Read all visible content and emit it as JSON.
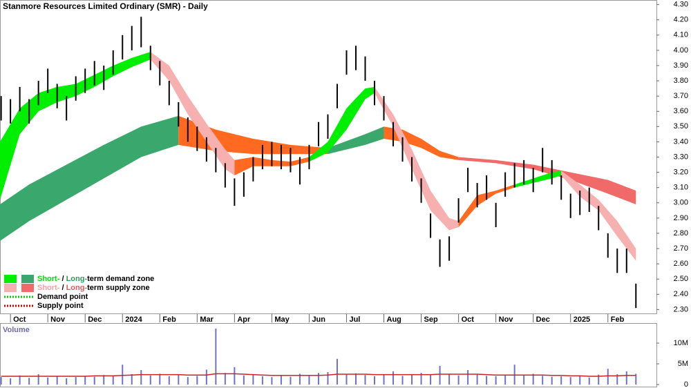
{
  "chart_data": {
    "type": "hilo",
    "title": "Stanmore Resources Limited Ordinary (SMR) - Daily",
    "price_color": "#000000",
    "x": [
      -0.25,
      0,
      0.25,
      0.5,
      0.75,
      1,
      1.25,
      1.5,
      1.75,
      2,
      2.25,
      2.5,
      2.75,
      3,
      3.25,
      3.5,
      3.75,
      4,
      4.25,
      4.5,
      4.75,
      5,
      5.25,
      5.5,
      5.75,
      6,
      6.25,
      6.5,
      6.75,
      7,
      7.25,
      7.5,
      7.75,
      8,
      8.25,
      8.5,
      8.75,
      9,
      9.25,
      9.5,
      9.75,
      10,
      10.25,
      10.5,
      10.75,
      11,
      11.25,
      11.5,
      11.75,
      12,
      12.25,
      12.5,
      12.75,
      13,
      13.25,
      13.5,
      13.75,
      14,
      14.25,
      14.5,
      14.75,
      15,
      15.25,
      15.5,
      15.75,
      16,
      16.25,
      16.5,
      16.75
    ],
    "high": [
      3.7,
      3.68,
      3.76,
      3.68,
      3.8,
      3.88,
      3.78,
      3.7,
      3.83,
      3.88,
      3.93,
      3.9,
      4.0,
      4.1,
      4.16,
      4.22,
      4.03,
      3.93,
      3.8,
      3.66,
      3.56,
      3.5,
      3.43,
      3.36,
      3.26,
      3.16,
      3.2,
      3.3,
      3.38,
      3.4,
      3.38,
      3.36,
      3.3,
      3.38,
      3.53,
      3.58,
      3.78,
      4.0,
      4.03,
      3.96,
      3.8,
      3.7,
      3.53,
      3.43,
      3.3,
      3.16,
      2.93,
      2.76,
      2.78,
      3.03,
      3.23,
      3.13,
      3.18,
      3.0,
      3.2,
      3.26,
      3.28,
      3.23,
      3.36,
      3.28,
      3.18,
      3.06,
      3.08,
      3.1,
      2.98,
      2.8,
      2.7,
      2.7,
      2.47
    ],
    "low": [
      3.54,
      3.52,
      3.6,
      3.52,
      3.64,
      3.72,
      3.62,
      3.54,
      3.67,
      3.72,
      3.77,
      3.74,
      3.84,
      3.94,
      4.0,
      4.02,
      3.87,
      3.77,
      3.64,
      3.5,
      3.4,
      3.34,
      3.27,
      3.2,
      3.1,
      2.98,
      3.04,
      3.14,
      3.22,
      3.24,
      3.22,
      3.2,
      3.12,
      3.22,
      3.37,
      3.42,
      3.62,
      3.84,
      3.87,
      3.8,
      3.64,
      3.54,
      3.37,
      3.27,
      3.14,
      3.0,
      2.77,
      2.58,
      2.62,
      2.87,
      3.07,
      2.97,
      3.02,
      2.84,
      3.04,
      3.1,
      3.12,
      3.07,
      3.2,
      3.12,
      3.02,
      2.9,
      2.92,
      2.94,
      2.82,
      2.64,
      2.54,
      2.54,
      2.31
    ],
    "xlim": [
      -0.28,
      17.3
    ],
    "xticks": [
      {
        "value": 0,
        "label": "Oct"
      },
      {
        "value": 1,
        "label": "Nov"
      },
      {
        "value": 2,
        "label": "Dec"
      },
      {
        "value": 3,
        "label": "2024"
      },
      {
        "value": 4,
        "label": "Feb"
      },
      {
        "value": 5,
        "label": "Mar"
      },
      {
        "value": 6,
        "label": "Apr"
      },
      {
        "value": 7,
        "label": "May"
      },
      {
        "value": 8,
        "label": "Jun"
      },
      {
        "value": 9,
        "label": "Jul"
      },
      {
        "value": 10,
        "label": "Aug"
      },
      {
        "value": 11,
        "label": "Sep"
      },
      {
        "value": 12,
        "label": "Oct"
      },
      {
        "value": 13,
        "label": "Nov"
      },
      {
        "value": 14,
        "label": "Dec"
      },
      {
        "value": 15,
        "label": "2025"
      },
      {
        "value": 16,
        "label": "Feb"
      }
    ],
    "ylim": [
      2.27,
      4.33
    ],
    "yticks": [
      {
        "value": 2.3,
        "label": "2.30"
      },
      {
        "value": 2.4,
        "label": "2.40"
      },
      {
        "value": 2.5,
        "label": "2.50"
      },
      {
        "value": 2.6,
        "label": "2.60"
      },
      {
        "value": 2.7,
        "label": "2.70"
      },
      {
        "value": 2.8,
        "label": "2.80"
      },
      {
        "value": 2.9,
        "label": "2.90"
      },
      {
        "value": 3.0,
        "label": "3.00"
      },
      {
        "value": 3.1,
        "label": "3.10"
      },
      {
        "value": 3.2,
        "label": "3.20"
      },
      {
        "value": 3.3,
        "label": "3.30"
      },
      {
        "value": 3.4,
        "label": "3.40"
      },
      {
        "value": 3.5,
        "label": "3.50"
      },
      {
        "value": 3.6,
        "label": "3.60"
      },
      {
        "value": 3.7,
        "label": "3.70"
      },
      {
        "value": 3.8,
        "label": "3.80"
      },
      {
        "value": 3.9,
        "label": "3.90"
      },
      {
        "value": 4.0,
        "label": "4.00"
      },
      {
        "value": 4.1,
        "label": "4.10"
      },
      {
        "value": 4.2,
        "label": "4.20"
      },
      {
        "value": 4.3,
        "label": "4.30"
      }
    ],
    "bands": [
      {
        "color": "#3aa86c",
        "x": [
          -0.28,
          0.5,
          1.5,
          2.5,
          3.5,
          4.5
        ],
        "upper": [
          2.99,
          3.12,
          3.25,
          3.38,
          3.5,
          3.57
        ],
        "lower": [
          2.75,
          2.88,
          3.02,
          3.16,
          3.3,
          3.38
        ]
      },
      {
        "color": "#ff6a20",
        "x": [
          4.5,
          5.5,
          6.5,
          7.5,
          8.5
        ],
        "upper": [
          3.57,
          3.48,
          3.42,
          3.38,
          3.36
        ],
        "lower": [
          3.38,
          3.34,
          3.32,
          3.32,
          3.32
        ]
      },
      {
        "color": "#3aa86c",
        "x": [
          8.5,
          9.5,
          10
        ],
        "upper": [
          3.36,
          3.45,
          3.5
        ],
        "lower": [
          3.32,
          3.38,
          3.42
        ]
      },
      {
        "color": "#ff6a20",
        "x": [
          10,
          10.5,
          11,
          11.5,
          12
        ],
        "upper": [
          3.5,
          3.48,
          3.42,
          3.34,
          3.3
        ],
        "lower": [
          3.42,
          3.4,
          3.36,
          3.3,
          3.28
        ]
      },
      {
        "color": "#f06a6a",
        "x": [
          12,
          13,
          14,
          15,
          16,
          16.75
        ],
        "upper": [
          3.3,
          3.28,
          3.25,
          3.2,
          3.15,
          3.08
        ],
        "lower": [
          3.28,
          3.26,
          3.22,
          3.15,
          3.06,
          2.99
        ]
      },
      {
        "color": "#00ee00",
        "x": [
          -0.28,
          0.25,
          0.75,
          1.25,
          1.75,
          2.25,
          2.75,
          3.25,
          3.75
        ],
        "upper": [
          3.4,
          3.62,
          3.72,
          3.76,
          3.78,
          3.84,
          3.9,
          3.95,
          3.99
        ],
        "lower": [
          3.02,
          3.45,
          3.6,
          3.66,
          3.7,
          3.76,
          3.83,
          3.89,
          3.94
        ]
      },
      {
        "color": "#f7b0b0",
        "x": [
          3.75,
          4.25,
          4.75,
          5.25,
          5.75,
          6
        ],
        "upper": [
          3.99,
          3.9,
          3.7,
          3.52,
          3.35,
          3.28
        ],
        "lower": [
          3.94,
          3.8,
          3.58,
          3.4,
          3.22,
          3.18
        ]
      },
      {
        "color": "#ff6a20",
        "x": [
          6,
          6.5,
          7,
          7.5,
          8
        ],
        "upper": [
          3.28,
          3.3,
          3.28,
          3.27,
          3.3
        ],
        "lower": [
          3.18,
          3.24,
          3.24,
          3.24,
          3.27
        ]
      },
      {
        "color": "#00ee00",
        "x": [
          8,
          8.5,
          9,
          9.5,
          9.75
        ],
        "upper": [
          3.3,
          3.4,
          3.62,
          3.75,
          3.76
        ],
        "lower": [
          3.27,
          3.33,
          3.48,
          3.68,
          3.72
        ]
      },
      {
        "color": "#f7b0b0",
        "x": [
          9.75,
          10.25,
          10.75,
          11.25,
          11.75,
          12
        ],
        "upper": [
          3.76,
          3.58,
          3.35,
          3.08,
          2.9,
          2.88
        ],
        "lower": [
          3.72,
          3.5,
          3.22,
          2.95,
          2.82,
          2.84
        ]
      },
      {
        "color": "#ff6a20",
        "x": [
          12,
          12.5,
          13,
          13.5
        ],
        "upper": [
          2.88,
          3.05,
          3.08,
          3.12
        ],
        "lower": [
          2.84,
          2.98,
          3.06,
          3.1
        ]
      },
      {
        "color": "#00ee00",
        "x": [
          13.5,
          14,
          14.5,
          14.75
        ],
        "upper": [
          3.12,
          3.16,
          3.2,
          3.21
        ],
        "lower": [
          3.1,
          3.13,
          3.16,
          3.18
        ]
      },
      {
        "color": "#f7b0b0",
        "x": [
          14.75,
          15.25,
          15.75,
          16.25,
          16.75
        ],
        "upper": [
          3.21,
          3.12,
          3.02,
          2.88,
          2.7
        ],
        "lower": [
          3.18,
          3.04,
          2.95,
          2.78,
          2.62
        ]
      }
    ],
    "legend": [
      {
        "swatches": [
          "#00ee00",
          "#3aa86c"
        ],
        "parts": [
          {
            "text": "Short-",
            "color": "#00dd00"
          },
          {
            "text": " / ",
            "color": "#000000"
          },
          {
            "text": "Long-",
            "color": "#2e9a5e"
          },
          {
            "text": "term demand zone",
            "color": "#000000"
          }
        ]
      },
      {
        "swatches": [
          "#f7b0b0",
          "#f06a6a"
        ],
        "parts": [
          {
            "text": "Short-",
            "color": "#f7a0a0"
          },
          {
            "text": " / ",
            "color": "#000000"
          },
          {
            "text": "Long-",
            "color": "#e85a5a"
          },
          {
            "text": "term supply zone",
            "color": "#000000"
          }
        ]
      },
      {
        "line_color": "#00cc00",
        "text": "Demand point"
      },
      {
        "line_color": "#cc0000",
        "text": "Supply point"
      }
    ],
    "volume": {
      "title": "Volume",
      "color": "#7070c8",
      "values": [
        1800000,
        1500000,
        2200000,
        1600000,
        2500000,
        1700000,
        2000000,
        1500000,
        1800000,
        2100000,
        1900000,
        2300000,
        2000000,
        4800000,
        2500000,
        3500000,
        2200000,
        2600000,
        2000000,
        2400000,
        1800000,
        2100000,
        3600000,
        13500000,
        2800000,
        4200000,
        2200000,
        2500000,
        2000000,
        1800000,
        2100000,
        1900000,
        2600000,
        2200000,
        2800000,
        3000000,
        6200000,
        2500000,
        2700000,
        2300000,
        2000000,
        2400000,
        3200000,
        2100000,
        2500000,
        2800000,
        2300000,
        4500000,
        2600000,
        2200000,
        3500000,
        2400000,
        2100000,
        2000000,
        2300000,
        4800000,
        2200000,
        2600000,
        2100000,
        1900000,
        2000000,
        1800000,
        2200000,
        1700000,
        2400000,
        3800000,
        2500000,
        3200000,
        2600000
      ],
      "avg_color": "#cc2222",
      "avg_values": [
        2000000,
        2000000,
        2000000,
        2000000,
        2000000,
        2000000,
        2000000,
        2000000,
        2000000,
        2000000,
        2100000,
        2100000,
        2100000,
        2200000,
        2300000,
        2400000,
        2400000,
        2400000,
        2400000,
        2400000,
        2300000,
        2300000,
        2300000,
        2600000,
        2600000,
        2600000,
        2500000,
        2400000,
        2300000,
        2200000,
        2200000,
        2200000,
        2200000,
        2200000,
        2200000,
        2300000,
        2500000,
        2500000,
        2500000,
        2500000,
        2400000,
        2400000,
        2400000,
        2400000,
        2400000,
        2400000,
        2400000,
        2500000,
        2500000,
        2500000,
        2500000,
        2500000,
        2400000,
        2300000,
        2300000,
        2300000,
        2300000,
        2300000,
        2300000,
        2200000,
        2200000,
        2100000,
        2100000,
        2000000,
        2000000,
        2100000,
        2100000,
        2200000,
        2200000
      ],
      "ylim": [
        0,
        14500000
      ],
      "yticks": [
        0,
        {
          "value": 5000000,
          "label": "5M"
        },
        {
          "value": 10000000,
          "label": "10M"
        }
      ]
    }
  }
}
